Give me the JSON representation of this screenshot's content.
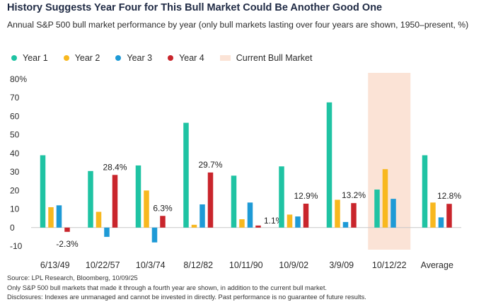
{
  "chart_data": {
    "type": "bar",
    "title": "History Suggests Year Four for This Bull Market Could Be Another Good One",
    "subtitle": "Annual S&P 500 bull market performance by year (only bull markets lasting over four years are shown, 1950–present, %)",
    "xlabel": "",
    "ylabel": "",
    "ylim": [
      -10,
      80
    ],
    "yticks": [
      "80%",
      "70",
      "60",
      "50",
      "40",
      "30",
      "20",
      "10",
      "0",
      "-10"
    ],
    "yticks_values": [
      80,
      70,
      60,
      50,
      40,
      30,
      20,
      10,
      0,
      -10
    ],
    "grid": false,
    "categories": [
      "6/13/49",
      "10/22/57",
      "10/3/74",
      "8/12/82",
      "10/11/90",
      "10/9/02",
      "3/9/09",
      "10/12/22",
      "Average"
    ],
    "series": [
      {
        "name": "Year 1",
        "color": "#1fc3a3",
        "values": [
          39,
          30.5,
          33.5,
          56.5,
          28,
          33,
          67.5,
          20.5,
          39
        ]
      },
      {
        "name": "Year 2",
        "color": "#f8b81f",
        "values": [
          11,
          8.5,
          20,
          1.5,
          4.5,
          7,
          15,
          31.5,
          13.5
        ]
      },
      {
        "name": "Year 3",
        "color": "#1e9ad6",
        "values": [
          12,
          -5,
          -8,
          12.5,
          13.5,
          6,
          3,
          15.5,
          5.5
        ]
      },
      {
        "name": "Year 4",
        "color": "#c9252c",
        "values": [
          -2.3,
          28.4,
          6.3,
          29.7,
          1.1,
          12.9,
          13.2,
          null,
          12.8
        ]
      }
    ],
    "data_labels": [
      "-2.3%",
      "28.4%",
      "6.3%",
      "29.7%",
      "1.1%",
      "12.9%",
      "13.2%",
      "",
      "12.8%"
    ],
    "highlight": {
      "label": "Current Bull Market",
      "category": "10/12/22",
      "color": "#fbe3d6"
    }
  },
  "footer": {
    "source": "Source: LPL Research, Bloomberg, 10/09/25",
    "note": "Only S&P 500 bull markets that made it through a fourth year are shown, in addition to the current bull market.",
    "disclosure": "Disclosures: Indexes are unmanaged and cannot be invested in directly. Past performance is no guarantee of future results."
  }
}
